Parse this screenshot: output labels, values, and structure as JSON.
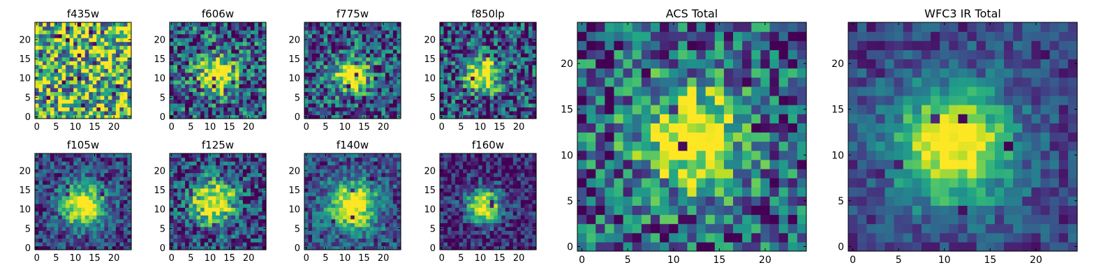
{
  "chart_data": [
    {
      "type": "heatmap",
      "title": "f435w",
      "grid_size": 25,
      "x_ticks": [
        0,
        5,
        10,
        15,
        20
      ],
      "y_ticks": [
        0,
        5,
        10,
        15,
        20
      ],
      "xlim": [
        0,
        25
      ],
      "ylim": [
        0,
        25
      ],
      "colormap": "viridis",
      "peak": [
        12,
        12
      ],
      "sigma": 0,
      "noise": 0.55,
      "base": 0.7,
      "seed": 11
    },
    {
      "type": "heatmap",
      "title": "f606w",
      "grid_size": 25,
      "x_ticks": [
        0,
        5,
        10,
        15,
        20
      ],
      "y_ticks": [
        0,
        5,
        10,
        15,
        20
      ],
      "xlim": [
        0,
        25
      ],
      "ylim": [
        0,
        25
      ],
      "colormap": "viridis",
      "peak": [
        12,
        11
      ],
      "sigma": 3.2,
      "noise": 0.42,
      "base": 0.55,
      "seed": 23
    },
    {
      "type": "heatmap",
      "title": "f775w",
      "grid_size": 25,
      "x_ticks": [
        0,
        5,
        10,
        15,
        20
      ],
      "y_ticks": [
        0,
        5,
        10,
        15,
        20
      ],
      "xlim": [
        0,
        25
      ],
      "ylim": [
        0,
        25
      ],
      "colormap": "viridis",
      "peak": [
        12,
        11
      ],
      "sigma": 3.2,
      "noise": 0.4,
      "base": 0.5,
      "seed": 37
    },
    {
      "type": "heatmap",
      "title": "f850lp",
      "grid_size": 25,
      "x_ticks": [
        0,
        5,
        10,
        15,
        20
      ],
      "y_ticks": [
        0,
        5,
        10,
        15,
        20
      ],
      "xlim": [
        0,
        25
      ],
      "ylim": [
        0,
        25
      ],
      "colormap": "viridis",
      "peak": [
        11,
        11
      ],
      "sigma": 3.0,
      "noise": 0.42,
      "base": 0.5,
      "seed": 41
    },
    {
      "type": "heatmap",
      "title": "f105w",
      "grid_size": 25,
      "x_ticks": [
        0,
        5,
        10,
        15,
        20
      ],
      "y_ticks": [
        0,
        5,
        10,
        15,
        20
      ],
      "xlim": [
        0,
        25
      ],
      "ylim": [
        0,
        25
      ],
      "colormap": "viridis",
      "peak": [
        12,
        11
      ],
      "sigma": 4.0,
      "noise": 0.25,
      "base": 0.45,
      "seed": 53
    },
    {
      "type": "heatmap",
      "title": "f125w",
      "grid_size": 25,
      "x_ticks": [
        0,
        5,
        10,
        15,
        20
      ],
      "y_ticks": [
        0,
        5,
        10,
        15,
        20
      ],
      "xlim": [
        0,
        25
      ],
      "ylim": [
        0,
        25
      ],
      "colormap": "viridis",
      "peak": [
        11,
        12
      ],
      "sigma": 4.0,
      "noise": 0.35,
      "base": 0.45,
      "seed": 61
    },
    {
      "type": "heatmap",
      "title": "f140w",
      "grid_size": 25,
      "x_ticks": [
        0,
        5,
        10,
        15,
        20
      ],
      "y_ticks": [
        0,
        5,
        10,
        15,
        20
      ],
      "xlim": [
        0,
        25
      ],
      "ylim": [
        0,
        25
      ],
      "colormap": "viridis",
      "peak": [
        12,
        11
      ],
      "sigma": 4.2,
      "noise": 0.25,
      "base": 0.5,
      "seed": 71
    },
    {
      "type": "heatmap",
      "title": "f160w",
      "grid_size": 25,
      "x_ticks": [
        0,
        5,
        10,
        15,
        20
      ],
      "y_ticks": [
        0,
        5,
        10,
        15,
        20
      ],
      "xlim": [
        0,
        25
      ],
      "ylim": [
        0,
        25
      ],
      "colormap": "viridis",
      "peak": [
        11,
        11
      ],
      "sigma": 3.3,
      "noise": 0.25,
      "base": 0.35,
      "seed": 83
    },
    {
      "type": "heatmap",
      "title": "ACS Total",
      "grid_size": 25,
      "x_ticks": [
        0,
        5,
        10,
        15,
        20
      ],
      "y_ticks": [
        0,
        5,
        10,
        15,
        20
      ],
      "xlim": [
        0,
        25
      ],
      "ylim": [
        0,
        25
      ],
      "colormap": "viridis",
      "peak": [
        12,
        12
      ],
      "sigma": 4.0,
      "noise": 0.4,
      "base": 0.55,
      "seed": 97
    },
    {
      "type": "heatmap",
      "title": "WFC3 IR Total",
      "grid_size": 25,
      "x_ticks": [
        0,
        5,
        10,
        15,
        20
      ],
      "y_ticks": [
        0,
        5,
        10,
        15,
        20
      ],
      "xlim": [
        0,
        25
      ],
      "ylim": [
        0,
        25
      ],
      "colormap": "viridis",
      "peak": [
        11,
        11
      ],
      "sigma": 4.5,
      "noise": 0.18,
      "base": 0.45,
      "seed": 101
    }
  ]
}
